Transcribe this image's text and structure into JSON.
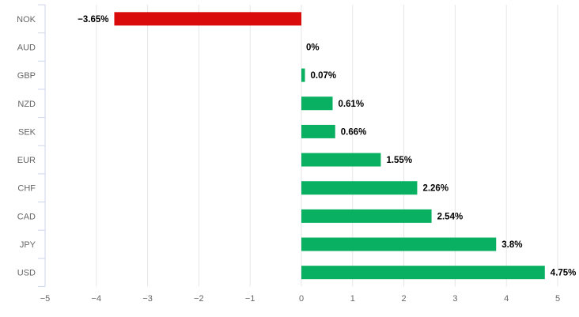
{
  "chart_data": {
    "type": "bar",
    "orientation": "horizontal",
    "title": "",
    "xlabel": "",
    "ylabel": "",
    "categories": [
      "NOK",
      "AUD",
      "GBP",
      "NZD",
      "SEK",
      "EUR",
      "CHF",
      "CAD",
      "JPY",
      "USD"
    ],
    "values": [
      -3.65,
      0,
      0.07,
      0.61,
      0.66,
      1.55,
      2.26,
      2.54,
      3.8,
      4.75
    ],
    "value_labels": [
      "−3.65%",
      "0%",
      "0.07%",
      "0.61%",
      "0.66%",
      "1.55%",
      "2.26%",
      "2.54%",
      "3.8%",
      "4.75%"
    ],
    "x_ticks": [
      -5,
      -4,
      -3,
      -2,
      -1,
      0,
      1,
      2,
      3,
      4,
      5
    ],
    "x_tick_labels": [
      "−5",
      "−4",
      "−3",
      "−2",
      "−1",
      "0",
      "1",
      "2",
      "3",
      "4",
      "5"
    ],
    "xlim": [
      -5,
      5
    ],
    "grid": true,
    "legend": "none",
    "colors": {
      "positive_bar": "#0ab061",
      "negative_bar": "#d90b0b",
      "gridline": "#e6e6e6",
      "axis_line": "#ccd6eb",
      "category_label": "#666666",
      "tick_label": "#666666",
      "value_label": "#000000",
      "background": "#ffffff"
    }
  }
}
